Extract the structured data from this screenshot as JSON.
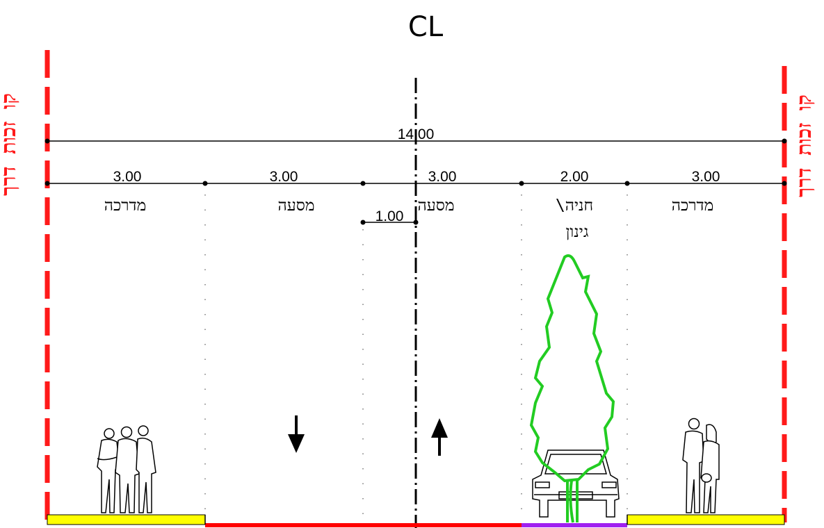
{
  "centerline_label": "CL",
  "row_label": "קו זכות דרך",
  "total_width": "14.00",
  "segments": [
    {
      "id": "sidewalk-left",
      "width": "3.00",
      "label": "מדרכה",
      "label2": ""
    },
    {
      "id": "lane-left",
      "width": "3.00",
      "label": "מסעה",
      "label2": ""
    },
    {
      "id": "lane-right",
      "width": "3.00",
      "label": "מסעה",
      "label2": ""
    },
    {
      "id": "parking",
      "width": "2.00",
      "label": "חניה\\",
      "label2": "גינון"
    },
    {
      "id": "sidewalk-right",
      "width": "3.00",
      "label": "מדרכה",
      "label2": ""
    }
  ],
  "median_offset": "1.00",
  "colors": {
    "row_line": "#ff1a1a",
    "sidewalk": "#ffff00",
    "roadway": "#ff0000",
    "parking": "#a020f0",
    "tree": "#22cc22"
  }
}
